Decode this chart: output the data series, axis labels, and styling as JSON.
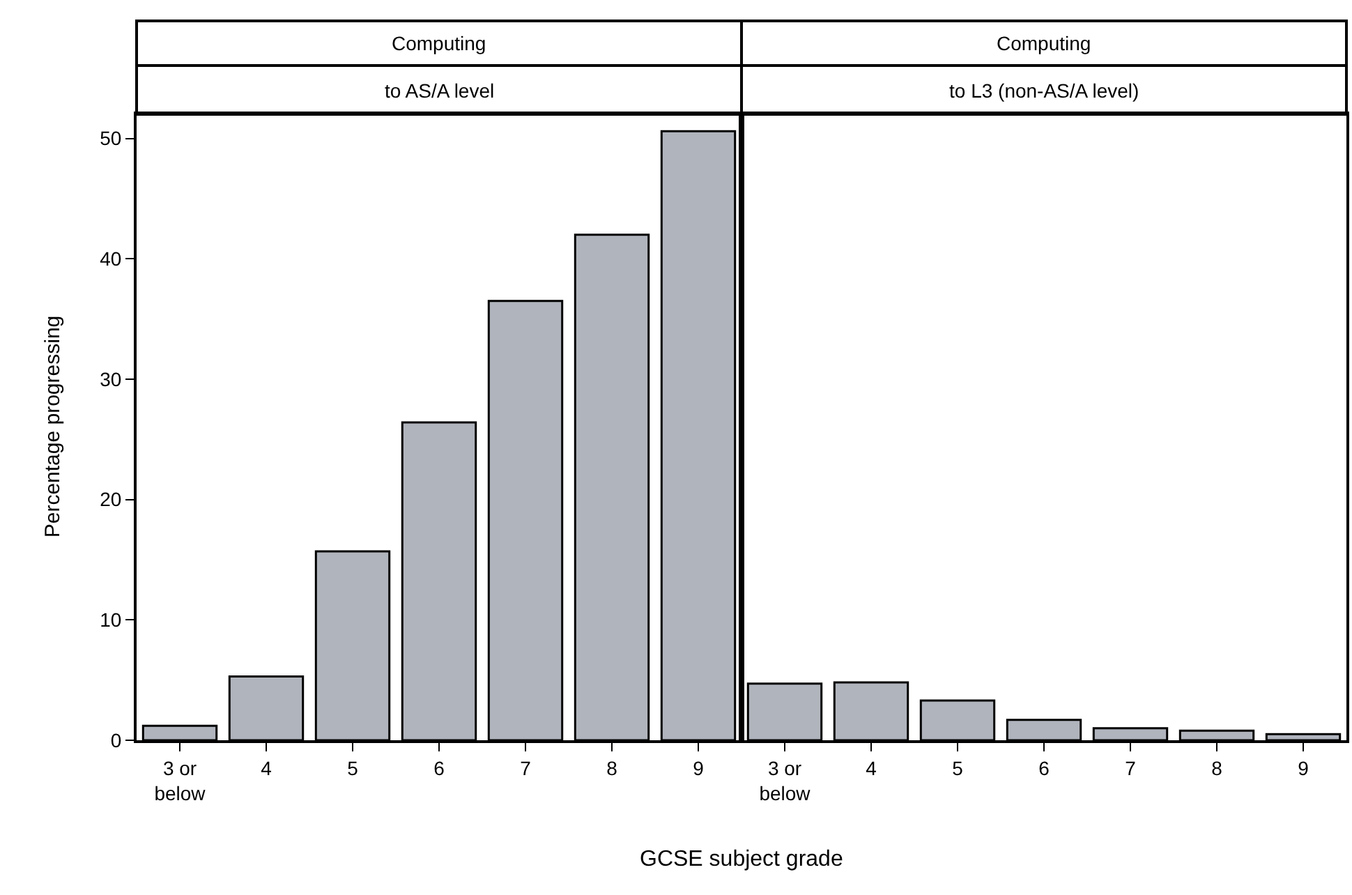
{
  "chart_data": [
    {
      "type": "bar",
      "title": "Computing",
      "subtitle": "to AS/A level",
      "xlabel": "GCSE subject grade",
      "ylabel": "Percentage progressing",
      "categories": [
        "3 or\nbelow",
        "4",
        "5",
        "6",
        "7",
        "8",
        "9"
      ],
      "values": [
        1.2,
        5.3,
        15.7,
        26.4,
        36.5,
        42.0,
        50.6
      ],
      "color": "#b0b4bc",
      "ylim": [
        0,
        52
      ],
      "yticks": [
        0,
        10,
        20,
        30,
        40,
        50
      ]
    },
    {
      "type": "bar",
      "title": "Computing",
      "subtitle": "to L3 (non-AS/A level)",
      "categories": [
        "3 or\nbelow",
        "4",
        "5",
        "6",
        "7",
        "8",
        "9"
      ],
      "values": [
        4.7,
        4.8,
        3.3,
        1.7,
        1.0,
        0.8,
        0.5
      ],
      "color": "#b0b4bc",
      "ylim": [
        0,
        52
      ],
      "yticks": [
        0,
        10,
        20,
        30,
        40,
        50
      ],
      "tick_labels": "x"
    }
  ]
}
